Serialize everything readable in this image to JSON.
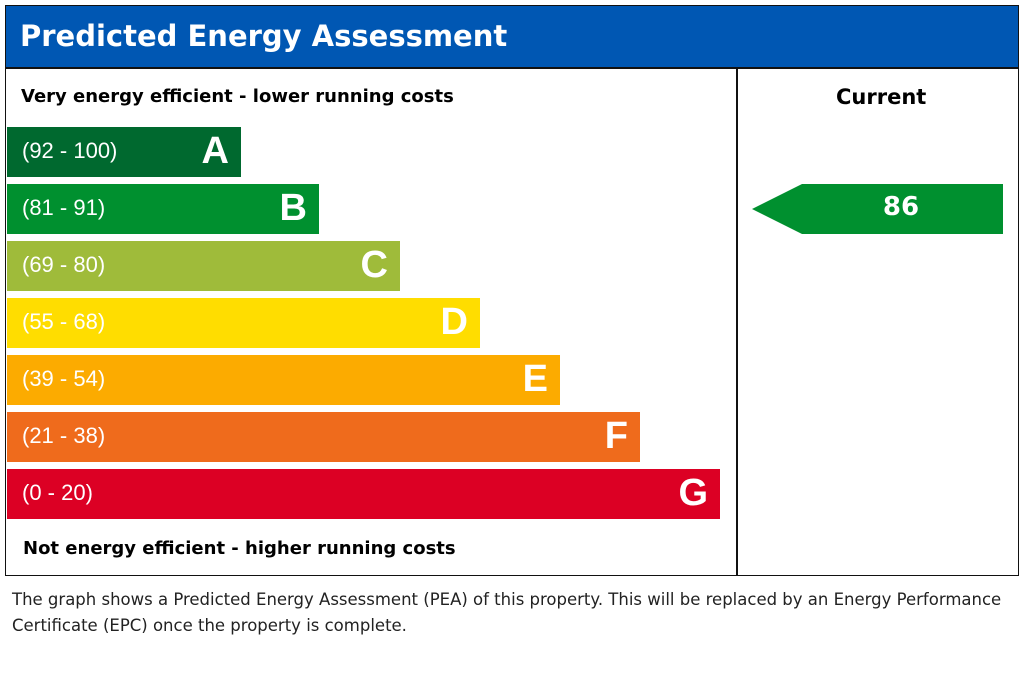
{
  "header": {
    "title": "Predicted Energy Assessment"
  },
  "labels": {
    "top": "Very energy efficient - lower running costs",
    "bottom": "Not energy efficient - higher running costs",
    "current_header": "Current"
  },
  "chart_data": {
    "type": "bar",
    "title": "Predicted Energy Assessment",
    "categories": [
      "A",
      "B",
      "C",
      "D",
      "E",
      "F",
      "G"
    ],
    "ranges": [
      "(92 - 100)",
      "(81 - 91)",
      "(69 - 80)",
      "(55 - 68)",
      "(39 - 54)",
      "(21 - 38)",
      "(0 - 20)"
    ],
    "colors": [
      "#00692f",
      "#00902f",
      "#9fbb3a",
      "#ffdd00",
      "#fcab00",
      "#ef6b1c",
      "#dc0024"
    ],
    "current": {
      "value": "86",
      "band": "B",
      "color": "#00902f"
    }
  },
  "note": "The graph shows a Predicted Energy Assessment (PEA) of this property. This will be replaced by an Energy Performance Certificate (EPC) once the property is complete."
}
